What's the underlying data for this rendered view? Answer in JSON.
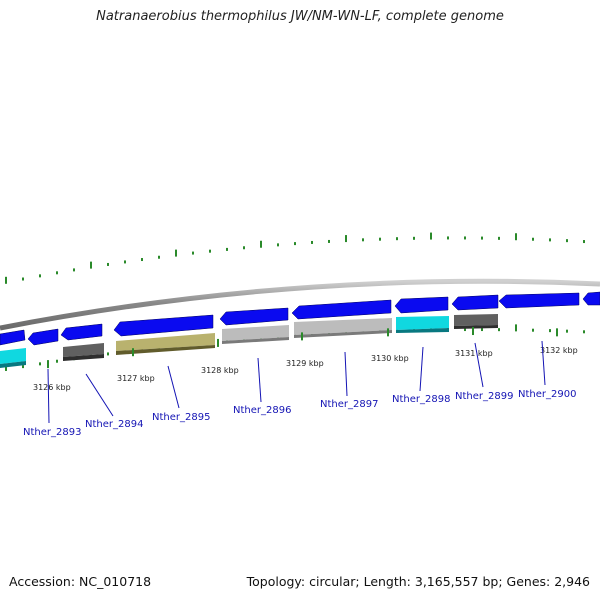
{
  "title": "Natranaerobius thermophilus JW/NM-WN-LF, complete genome",
  "accession": "Accession: NC_010718",
  "summary": "Topology: circular; Length: 3,165,557 bp; Genes: 2,946",
  "colors": {
    "backbone": "#8a8a8a",
    "blue": "#0a0af0",
    "cyan": "#10d8e0",
    "dark_gray": "#606060",
    "light_gray": "#bcbcbc",
    "olive": "#b9b26e",
    "gc_tick": "#2a8a2a",
    "label": "#1414b4"
  },
  "axis": {
    "ticks": [
      {
        "label": "3126 kbp"
      },
      {
        "label": "3127 kbp"
      },
      {
        "label": "3128 kbp"
      },
      {
        "label": "3129 kbp"
      },
      {
        "label": "3130 kbp"
      },
      {
        "label": "3131 kbp"
      },
      {
        "label": "3132 kbp"
      }
    ]
  },
  "genes": [
    {
      "label": "Nther_2893"
    },
    {
      "label": "Nther_2894"
    },
    {
      "label": "Nther_2895"
    },
    {
      "label": "Nther_2896"
    },
    {
      "label": "Nther_2897"
    },
    {
      "label": "Nther_2898"
    },
    {
      "label": "Nther_2899"
    },
    {
      "label": "Nther_2900"
    }
  ]
}
